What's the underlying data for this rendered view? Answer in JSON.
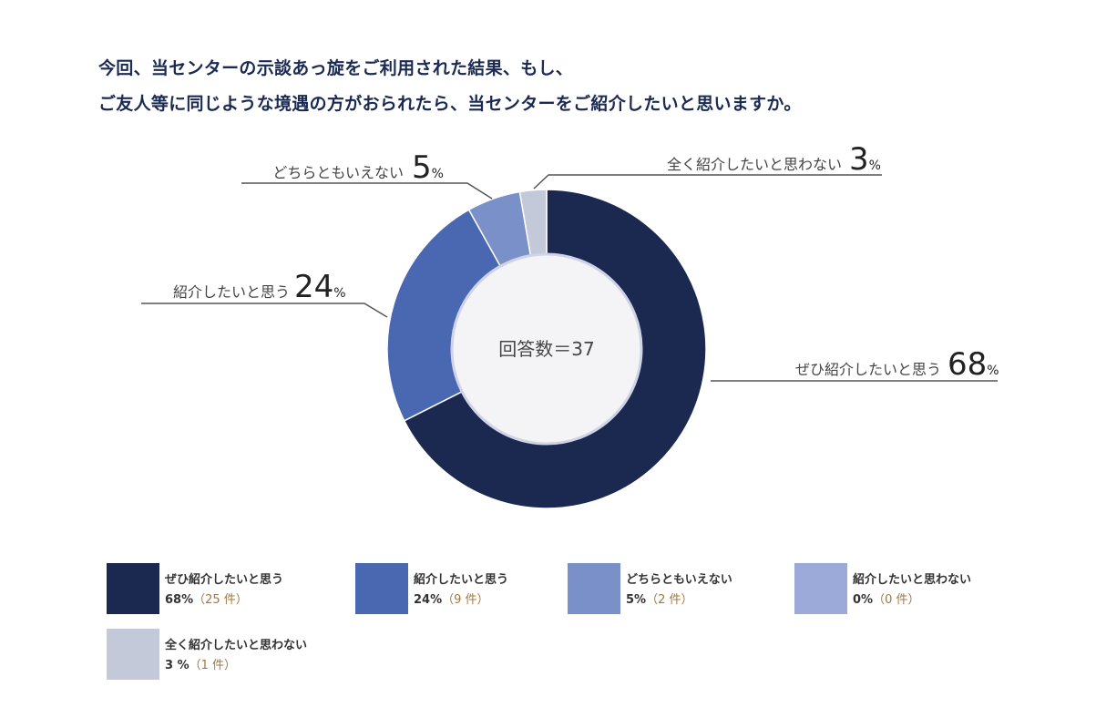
{
  "title": {
    "line1": "今回、当センターの示談あっ旋をご利用された結果、もし、",
    "line2": "ご友人等に同じような境遇の方がおられたら、当センターをご紹介したいと思いますか。"
  },
  "center_label": "回答数＝37",
  "colors": {
    "slice1": "#1b2850",
    "slice2": "#4a68b2",
    "slice3": "#7a90c8",
    "slice4": "#9baad8",
    "slice5": "#c3c9d9",
    "center_fill": "#f4f4f6",
    "center_ring": "#cfd3e6",
    "leader": "#555555",
    "count_text": "#a07840"
  },
  "callouts": [
    {
      "label": "ぜひ紹介したいと思う",
      "pct": "68",
      "sign": "%"
    },
    {
      "label": "紹介したいと思う",
      "pct": "24",
      "sign": "%"
    },
    {
      "label": "どちらともいえない",
      "pct": "5",
      "sign": "%"
    },
    {
      "label": "全く紹介したいと思わない",
      "pct": "3",
      "sign": "%"
    }
  ],
  "legend": [
    {
      "label": "ぜひ紹介したいと思う",
      "pct": "68%",
      "count": "（25 件）"
    },
    {
      "label": "紹介したいと思う",
      "pct": "24%",
      "count": "（9 件）"
    },
    {
      "label": "どちらともいえない",
      "pct": "5%",
      "count": "（2 件）"
    },
    {
      "label": "紹介したいと思わない",
      "pct": "0%",
      "count": "（0 件）"
    },
    {
      "label": "全く紹介したいと思わない",
      "pct": "3 %",
      "count": "（1 件）"
    }
  ],
  "chart_data": {
    "type": "pie",
    "categories": [
      "ぜひ紹介したいと思う",
      "紹介したいと思う",
      "どちらともいえない",
      "紹介したいと思わない",
      "全く紹介したいと思わない"
    ],
    "values": [
      25,
      9,
      2,
      0,
      1
    ],
    "percentages": [
      68,
      24,
      5,
      0,
      3
    ],
    "title": "今回、当センターの示談あっ旋をご利用された結果、もし、ご友人等に同じような境遇の方がおられたら、当センターをご紹介したいと思いますか。",
    "center_label": "回答数＝37",
    "legend": "bottom"
  }
}
